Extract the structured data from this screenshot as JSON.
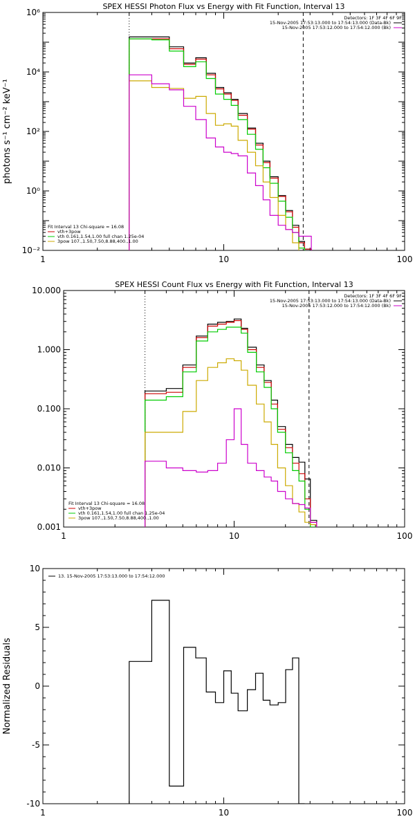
{
  "chart_data": [
    {
      "type": "line",
      "title": "SPEX HESSI Photon Flux vs Energy with Fit Function, Interval 13",
      "ylabel": "photons s⁻¹ cm⁻² keV⁻¹",
      "xlabel": "",
      "xscale": "log",
      "yscale": "log",
      "xlim": [
        1,
        100
      ],
      "ylim": [
        0.01,
        1000000
      ],
      "x_ticks": [
        {
          "v": 1,
          "label": "1"
        },
        {
          "v": 10,
          "label": "10"
        },
        {
          "v": 100,
          "label": "100"
        }
      ],
      "y_ticks": [
        {
          "v": 0.01,
          "label": "10⁻²"
        },
        {
          "v": 1,
          "label": "10⁰"
        },
        {
          "v": 100,
          "label": "10²"
        },
        {
          "v": 10000,
          "label": "10⁴"
        },
        {
          "v": 1000000,
          "label": "10⁶"
        }
      ],
      "vlines": [
        {
          "x": 3.0,
          "style": "dotted"
        },
        {
          "x": 27.5,
          "style": "dashed"
        }
      ],
      "legend_top": [
        {
          "text": "Detectors: 1F 3F 4F 6F 9F",
          "color": "#000000",
          "swatch": false
        },
        {
          "text": "15-Nov-2005 17:53:13.000 to 17:54:13.000 (Data-Bk)",
          "color": "#000000",
          "swatch": true
        },
        {
          "text": "15-Nov-2005 17:53:12.000 to 17:54:12.000 (Bk)",
          "color": "#cc00cc",
          "swatch": true
        }
      ],
      "legend_bottom": [
        {
          "text": "Fit Interval 13   Chi-square = 16.08",
          "color": "#000000",
          "swatch": false
        },
        {
          "text": "vth+3pow",
          "color": "#cc0000",
          "swatch": true
        },
        {
          "text": "vth 0.161,1.54,1.00  full chan 1.25e-04",
          "color": "#00cc00",
          "swatch": true
        },
        {
          "text": "3pow 107.,1.50,7.50,8.88,400.,1.00",
          "color": "#ccaa00",
          "swatch": true
        }
      ],
      "edges": [
        3.0,
        4.0,
        5.0,
        6.0,
        7.0,
        8.0,
        9.0,
        10.0,
        11.0,
        12.0,
        13.5,
        15.0,
        16.5,
        18.0,
        20.0,
        22.0,
        24.0,
        26.0,
        28.0,
        30.5
      ],
      "series": [
        {
          "color": "#000000",
          "values": [
            150000,
            150000,
            70000,
            20000,
            30000,
            9000,
            3000,
            2000,
            1200,
            400,
            130,
            40,
            10,
            3,
            0.7,
            0.22,
            0.07,
            0.02,
            0.011
          ]
        },
        {
          "color": "#cc0000",
          "values": [
            130000,
            130000,
            60000,
            18000,
            27000,
            8000,
            2700,
            1800,
            1100,
            350,
            120,
            35,
            9,
            2.7,
            0.65,
            0.2,
            0.06,
            0.018,
            0.011
          ]
        },
        {
          "color": "#00cc00",
          "values": [
            130000,
            120000,
            50000,
            15000,
            22000,
            6000,
            1800,
            1200,
            750,
            250,
            80,
            25,
            6,
            1.8,
            0.45,
            0.13,
            0.04,
            0.012
          ]
        },
        {
          "color": "#ccaa00",
          "values": [
            5000,
            3000,
            2800,
            1300,
            1500,
            400,
            160,
            180,
            150,
            50,
            20,
            7,
            2,
            0.6,
            0.15,
            0.05,
            0.018
          ]
        },
        {
          "color": "#cc00cc",
          "values": [
            8000,
            4000,
            2500,
            700,
            250,
            60,
            30,
            20,
            18,
            15,
            4,
            1.5,
            0.5,
            0.15,
            0.07,
            0.05,
            0.04,
            0.03,
            0.03
          ]
        }
      ]
    },
    {
      "type": "line",
      "title": "SPEX HESSI Count Flux vs Energy with Fit Function, Interval 13",
      "ylabel": "",
      "xlabel": "",
      "xscale": "log",
      "yscale": "log",
      "xlim": [
        1,
        100
      ],
      "ylim": [
        0.001,
        10
      ],
      "x_ticks": [
        {
          "v": 1,
          "label": "1"
        },
        {
          "v": 10,
          "label": "10"
        },
        {
          "v": 100,
          "label": "100"
        }
      ],
      "y_ticks": [
        {
          "v": 0.001,
          "label": "0.001"
        },
        {
          "v": 0.01,
          "label": "0.010"
        },
        {
          "v": 0.1,
          "label": "0.100"
        },
        {
          "v": 1,
          "label": "1.000"
        },
        {
          "v": 10,
          "label": "10.000"
        }
      ],
      "vlines": [
        {
          "x": 3.0,
          "style": "dotted"
        },
        {
          "x": 27.5,
          "style": "dashed"
        }
      ],
      "legend_top": [
        {
          "text": "Detectors: 1F 3F 4F 6F 9F",
          "color": "#000000",
          "swatch": false
        },
        {
          "text": "15-Nov-2005 17:53:13.000 to 17:54:13.000 (Data-Bk)",
          "color": "#000000",
          "swatch": true
        },
        {
          "text": "15-Nov-2005 17:53:12.000 to 17:54:12.000 (Bk)",
          "color": "#cc00cc",
          "swatch": true
        }
      ],
      "legend_bottom": [
        {
          "text": "Fit Interval 13   Chi-square = 16.08",
          "color": "#000000",
          "swatch": false
        },
        {
          "text": "vth+3pow",
          "color": "#cc0000",
          "swatch": true
        },
        {
          "text": "vth 0.161,1.54,1.00  full chan 1.25e-04",
          "color": "#00cc00",
          "swatch": true
        },
        {
          "text": "3pow 107.,1.50,7.50,8.88,400.,1.00",
          "color": "#ccaa00",
          "swatch": true
        }
      ],
      "edges": [
        3.0,
        4.0,
        5.0,
        6.0,
        7.0,
        8.0,
        9.0,
        10.0,
        11.0,
        12.0,
        13.5,
        15.0,
        16.5,
        18.0,
        20.0,
        22.0,
        24.0,
        26.0,
        28.0,
        30.5
      ],
      "series": [
        {
          "color": "#000000",
          "values": [
            0.2,
            0.22,
            0.55,
            1.7,
            2.7,
            2.9,
            3.0,
            3.3,
            2.3,
            1.1,
            0.55,
            0.3,
            0.14,
            0.05,
            0.025,
            0.015,
            0.0125,
            0.0065,
            0.0013
          ]
        },
        {
          "color": "#cc0000",
          "values": [
            0.18,
            0.19,
            0.5,
            1.6,
            2.5,
            2.7,
            2.9,
            3.1,
            2.2,
            1.0,
            0.5,
            0.28,
            0.12,
            0.045,
            0.022,
            0.012,
            0.008,
            0.003,
            0.0012
          ]
        },
        {
          "color": "#00cc00",
          "values": [
            0.14,
            0.16,
            0.42,
            1.4,
            2.0,
            2.2,
            2.4,
            2.4,
            1.9,
            0.9,
            0.42,
            0.23,
            0.1,
            0.04,
            0.018,
            0.009,
            0.006,
            0.002,
            0.001
          ]
        },
        {
          "color": "#ccaa00",
          "values": [
            0.04,
            0.04,
            0.09,
            0.3,
            0.5,
            0.6,
            0.7,
            0.65,
            0.45,
            0.25,
            0.12,
            0.06,
            0.025,
            0.01,
            0.005,
            0.0025,
            0.0018,
            0.0012,
            0.0011
          ]
        },
        {
          "color": "#cc00cc",
          "values": [
            0.013,
            0.01,
            0.009,
            0.0085,
            0.009,
            0.012,
            0.03,
            0.1,
            0.025,
            0.012,
            0.009,
            0.007,
            0.006,
            0.004,
            0.003,
            0.0025,
            0.0024,
            0.0021,
            0.0012
          ]
        }
      ]
    },
    {
      "type": "line",
      "title": "",
      "ylabel": "Normalized Residuals",
      "xlabel": "",
      "xscale": "log",
      "yscale": "linear",
      "xlim": [
        1,
        100
      ],
      "ylim": [
        -10,
        10
      ],
      "x_ticks": [
        {
          "v": 1,
          "label": "1"
        },
        {
          "v": 10,
          "label": "10"
        },
        {
          "v": 100,
          "label": "100"
        }
      ],
      "y_ticks": [
        {
          "v": -10,
          "label": "-10"
        },
        {
          "v": -5,
          "label": "-5"
        },
        {
          "v": 0,
          "label": "0"
        },
        {
          "v": 5,
          "label": "5"
        },
        {
          "v": 10,
          "label": "10"
        }
      ],
      "vlines": [],
      "legend_top_left": [
        {
          "text": "13. 15-Nov-2005 17:53:13.000 to 17:54:12.000",
          "color": "#000000",
          "swatch": true
        }
      ],
      "edges": [
        3.0,
        4.0,
        5.0,
        6.0,
        7.0,
        8.0,
        9.0,
        10.0,
        11.0,
        12.0,
        13.5,
        15.0,
        16.5,
        18.0,
        20.0,
        22.0,
        24.0,
        26.0,
        28.0
      ],
      "series": [
        {
          "color": "#000000",
          "values": [
            2.1,
            7.3,
            -8.5,
            3.3,
            2.4,
            -0.5,
            -1.4,
            1.3,
            -0.6,
            -2.1,
            -0.3,
            1.1,
            -1.2,
            -1.6,
            -1.4,
            1.4,
            2.4,
            -10
          ]
        }
      ]
    }
  ]
}
